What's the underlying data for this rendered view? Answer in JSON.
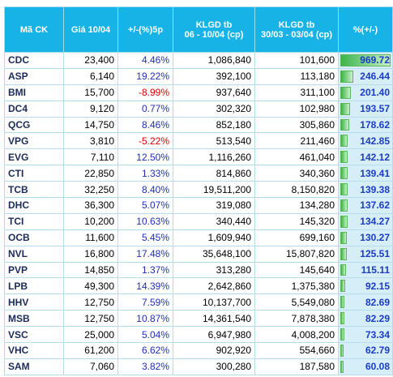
{
  "table": {
    "header": [
      "Mã CK",
      "Giá 10/04",
      "+/-(%)5p",
      "KLGD tb\n06 - 10/04 (cp)",
      "KLGD tb\n30/03 - 03/04 (cp)",
      "%(+/-)"
    ],
    "rows": [
      [
        "CDC",
        "23,400",
        "4.46%",
        "1,086,840",
        "101,600",
        "969.72"
      ],
      [
        "ASP",
        "6,140",
        "19.22%",
        "392,100",
        "113,180",
        "246.44"
      ],
      [
        "BMI",
        "15,700",
        "-8.99%",
        "937,640",
        "311,100",
        "201.40"
      ],
      [
        "DC4",
        "9,120",
        "0.77%",
        "302,320",
        "102,980",
        "193.57"
      ],
      [
        "QCG",
        "14,750",
        "8.46%",
        "852,180",
        "305,860",
        "178.62"
      ],
      [
        "VPG",
        "3,810",
        "-5.22%",
        "513,540",
        "211,460",
        "142.85"
      ],
      [
        "EVG",
        "7,110",
        "12.50%",
        "1,116,260",
        "461,040",
        "142.12"
      ],
      [
        "CTI",
        "22,850",
        "1.33%",
        "814,860",
        "340,360",
        "139.41"
      ],
      [
        "TCB",
        "32,250",
        "8.40%",
        "19,511,200",
        "8,150,820",
        "139.38"
      ],
      [
        "DHC",
        "36,300",
        "5.07%",
        "319,080",
        "134,280",
        "137.62"
      ],
      [
        "TCI",
        "10,200",
        "10.63%",
        "340,440",
        "145,320",
        "134.27"
      ],
      [
        "OCB",
        "11,600",
        "5.45%",
        "1,609,940",
        "699,160",
        "130.27"
      ],
      [
        "NVL",
        "16,800",
        "17.48%",
        "35,648,100",
        "15,807,820",
        "125.51"
      ],
      [
        "PVP",
        "14,850",
        "1.37%",
        "313,280",
        "145,640",
        "115.11"
      ],
      [
        "LPB",
        "49,300",
        "14.39%",
        "2,642,860",
        "1,375,380",
        "92.15"
      ],
      [
        "HHV",
        "12,750",
        "7.59%",
        "10,137,700",
        "5,549,080",
        "82.69"
      ],
      [
        "MSB",
        "12,750",
        "10.87%",
        "14,361,540",
        "7,878,380",
        "82.29"
      ],
      [
        "VSC",
        "25,000",
        "5.04%",
        "6,947,980",
        "4,008,200",
        "73.34"
      ],
      [
        "VHC",
        "61,200",
        "6.62%",
        "902,920",
        "554,660",
        "62.79"
      ],
      [
        "SAM",
        "7,060",
        "3.82%",
        "300,280",
        "187,580",
        "60.08"
      ]
    ]
  }
}
